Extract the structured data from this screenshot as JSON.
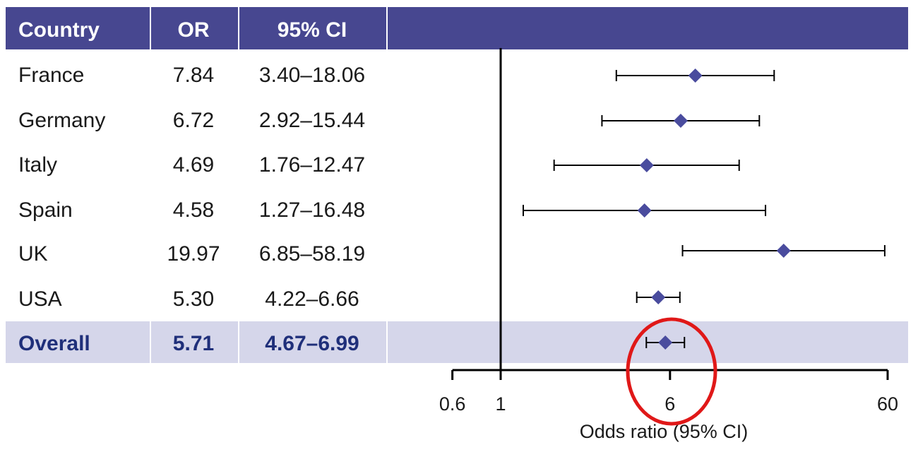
{
  "table": {
    "headers": [
      "Country",
      "OR",
      "95% CI"
    ],
    "rows": [
      {
        "country": "France",
        "or": "7.84",
        "ci": "3.40–18.06"
      },
      {
        "country": "Germany",
        "or": "6.72",
        "ci": "2.92–15.44"
      },
      {
        "country": "Italy",
        "or": "4.69",
        "ci": "1.76–12.47"
      },
      {
        "country": "Spain",
        "or": "4.58",
        "ci": "1.27–16.48"
      },
      {
        "country": "UK",
        "or": "19.97",
        "ci": "6.85–58.19"
      },
      {
        "country": "USA",
        "or": "5.30",
        "ci": "4.22–6.66"
      }
    ],
    "overall": {
      "country": "Overall",
      "or": "5.71",
      "ci": "4.67–6.99"
    }
  },
  "chart_data": {
    "type": "forest",
    "scale": "log",
    "xlabel": "Odds ratio (95% CI)",
    "xlim": [
      0.6,
      60
    ],
    "xticks": [
      0.6,
      1,
      6,
      60
    ],
    "xtick_labels": [
      "0.6",
      "1",
      "6",
      "60"
    ],
    "reference_line": 1,
    "categories": [
      "France",
      "Germany",
      "Italy",
      "Spain",
      "UK",
      "USA",
      "Overall"
    ],
    "estimates": [
      7.84,
      6.72,
      4.69,
      4.58,
      19.97,
      5.3,
      5.71
    ],
    "lower": [
      3.4,
      2.92,
      1.76,
      1.27,
      6.85,
      4.22,
      4.67
    ],
    "upper": [
      18.06,
      15.44,
      12.47,
      16.48,
      58.19,
      6.66,
      6.99
    ],
    "highlight": "Overall"
  },
  "colors": {
    "header_bg": "#474790",
    "header_text": "#ffffff",
    "overall_row_bg": "#d5d6ea",
    "overall_text": "#1f2f7a",
    "marker": "#4a4c9e",
    "line": "#000000",
    "highlight_circle": "#e01818"
  }
}
